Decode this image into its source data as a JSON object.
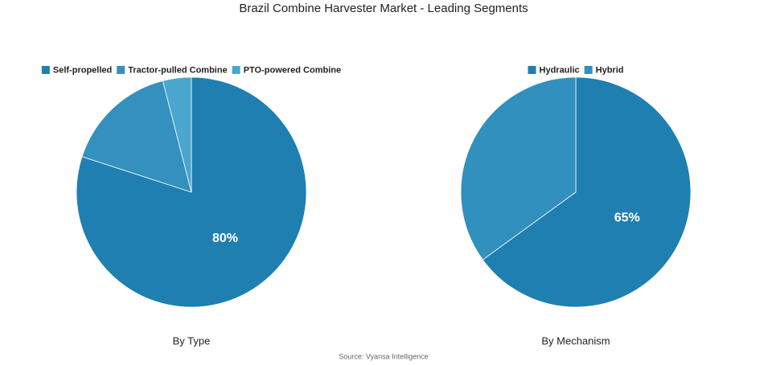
{
  "title": "Brazil Combine Harvester Market - Leading Segments",
  "source": "Source: Vyansa Intelligence",
  "chart_data": [
    {
      "type": "pie",
      "subtitle": "By Type",
      "categories": [
        "Self-propelled",
        "Tractor-pulled Combine",
        "PTO-powered Combine"
      ],
      "values": [
        80,
        16,
        4
      ],
      "value_labels": [
        "80%",
        null,
        null
      ],
      "colors": [
        "#1f7fb0",
        "#3490bf",
        "#4aa6cc"
      ]
    },
    {
      "type": "pie",
      "subtitle": "By Mechanism",
      "categories": [
        "Hydraulic",
        "Hybrid"
      ],
      "values": [
        65,
        35
      ],
      "value_labels": [
        "65%",
        null
      ],
      "colors": [
        "#1f7fb0",
        "#3190bd"
      ]
    }
  ]
}
